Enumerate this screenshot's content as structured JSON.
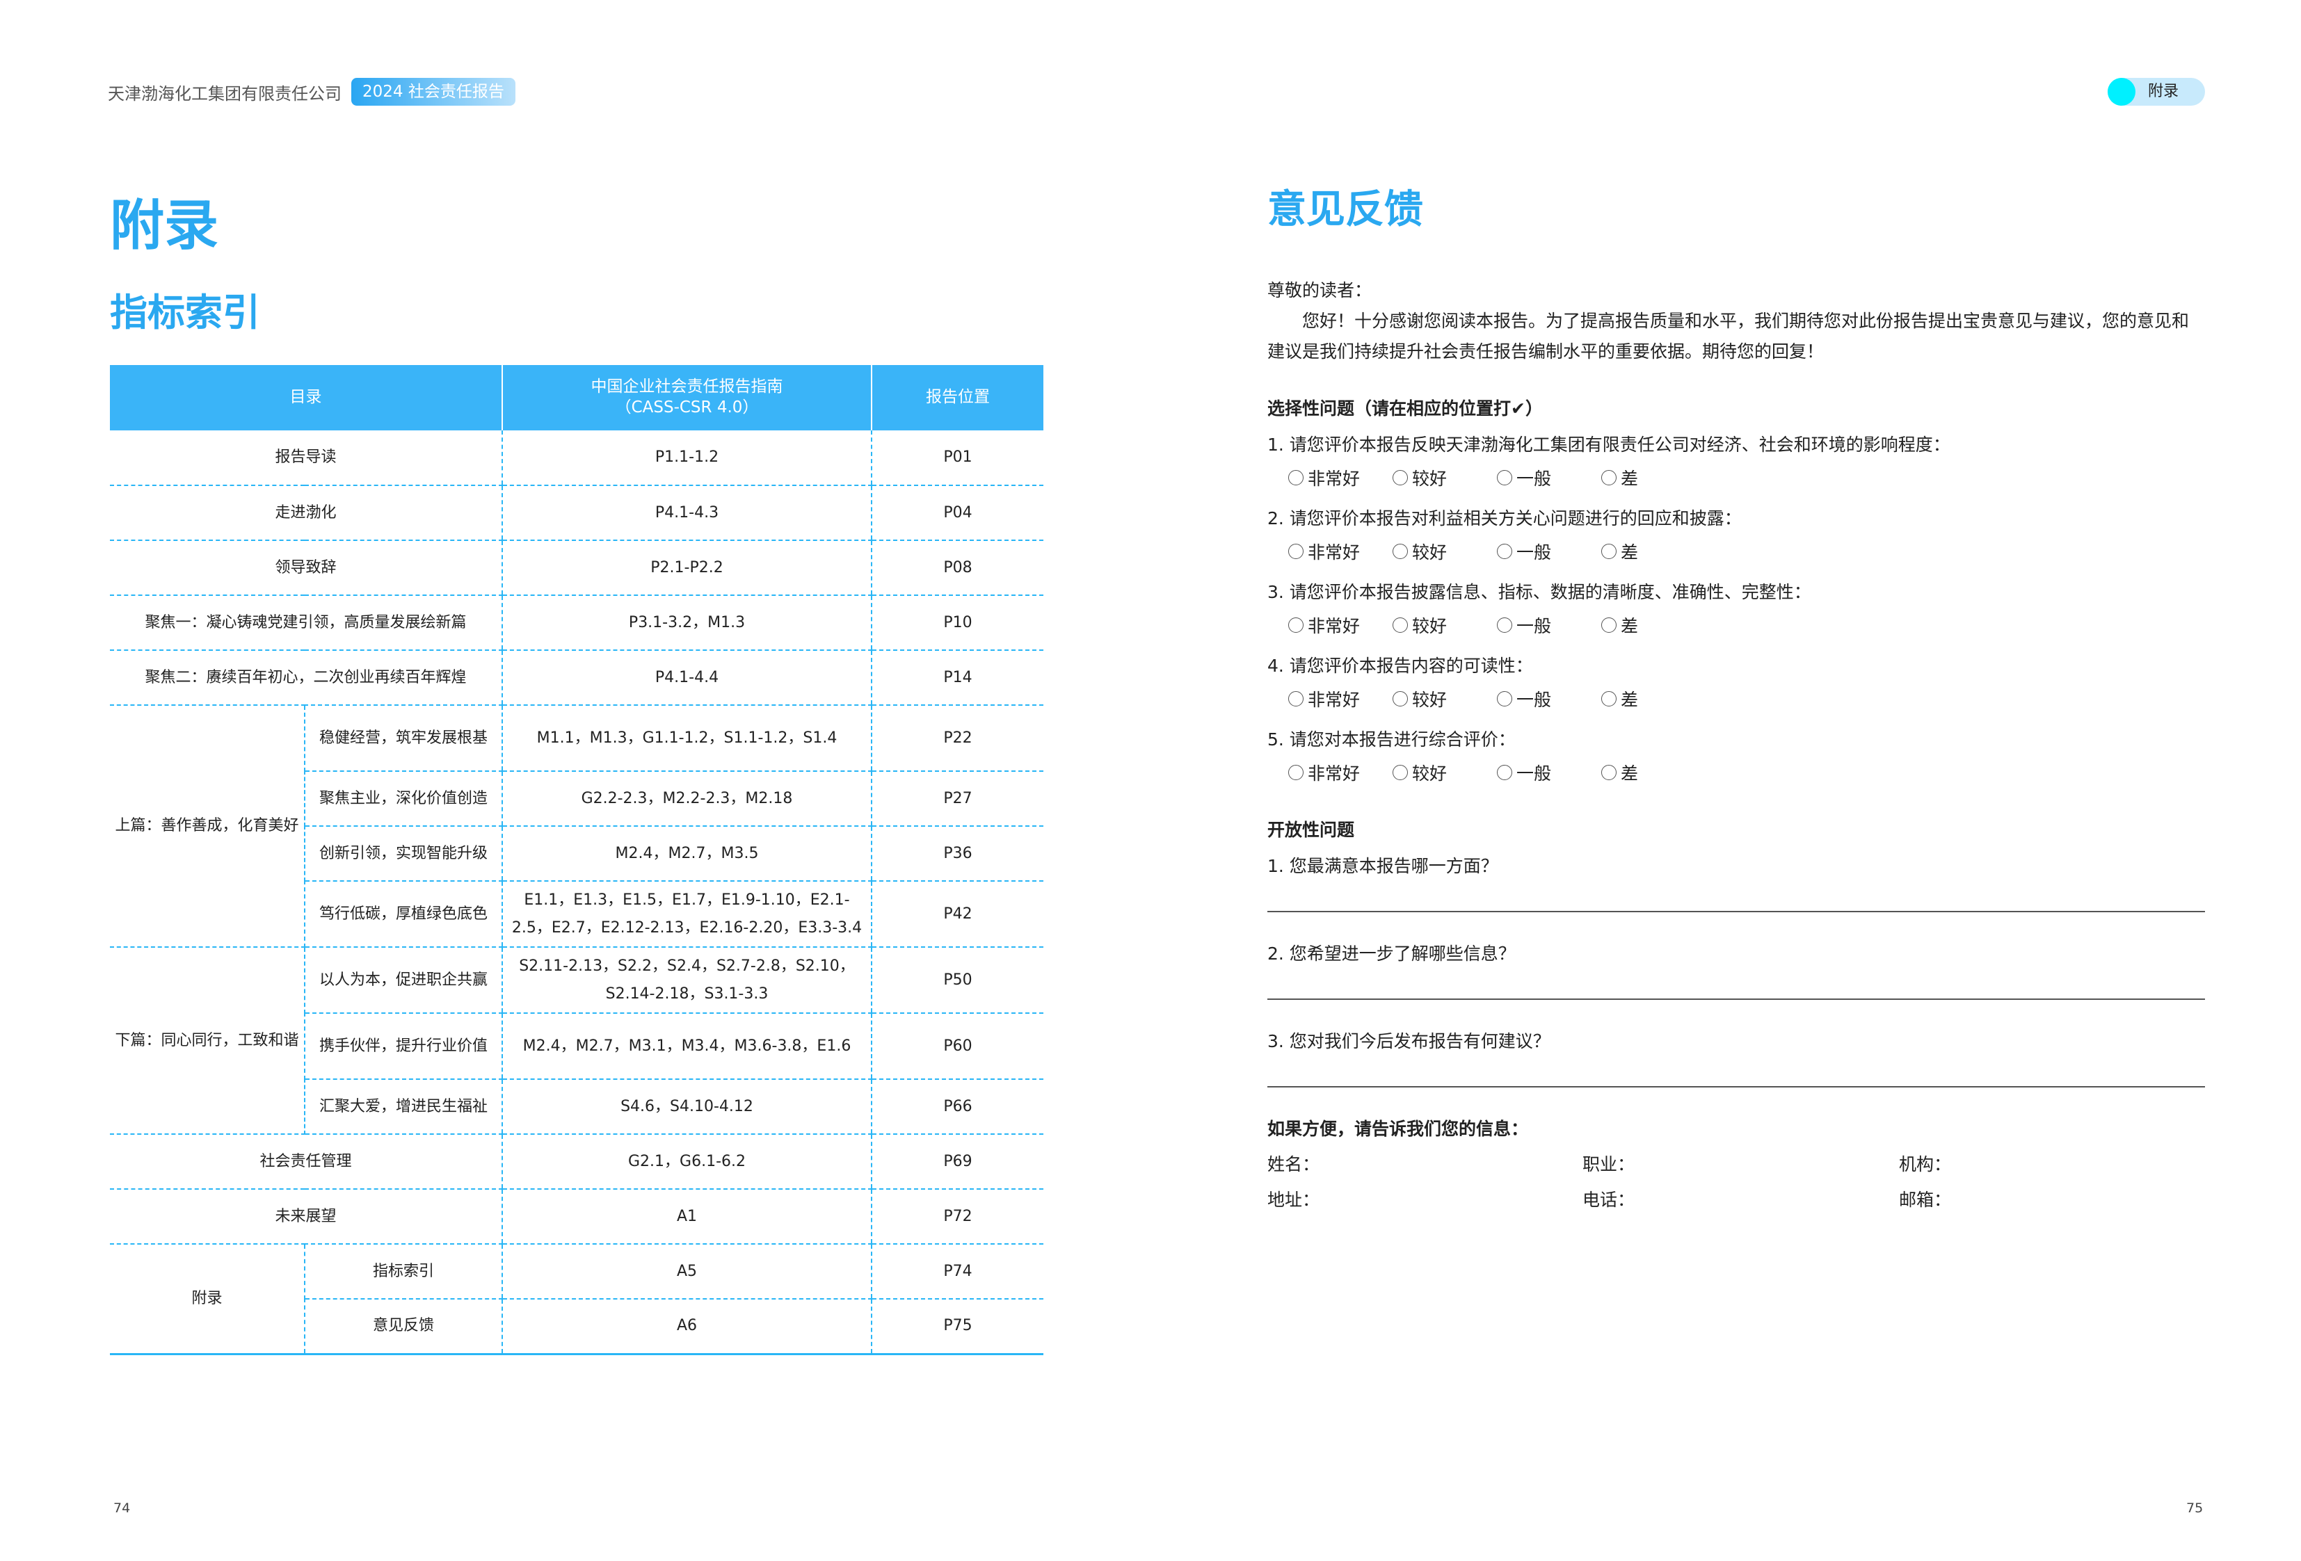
{
  "header": {
    "company": "天津渤海化工集团有限责任公司",
    "badge": "2024 社会责任报告",
    "section_pill": "附录"
  },
  "left": {
    "title": "附录",
    "subtitle": "指标索引",
    "table": {
      "headers": [
        "目录",
        "中国企业社会责任报告指南\n（CASS-CSR 4.0）",
        "报告位置"
      ],
      "rows": [
        {
          "label": "报告导读",
          "std": "P1.1-1.2",
          "page": "P01"
        },
        {
          "label": "走进渤化",
          "std": "P4.1-4.3",
          "page": "P04"
        },
        {
          "label": "领导致辞",
          "std": "P2.1-P2.2",
          "page": "P08"
        },
        {
          "label": "聚焦一：凝心铸魂党建引领，高质量发展绘新篇",
          "std": "P3.1-3.2，M1.3",
          "page": "P10"
        },
        {
          "label": "聚焦二：赓续百年初心，二次创业再续百年辉煌",
          "std": "P4.1-4.4",
          "page": "P14"
        },
        {
          "group": "上篇：善作善成，化育美好",
          "items": [
            {
              "label": "稳健经营，筑牢发展根基",
              "std": "M1.1，M1.3，G1.1-1.2，S1.1-1.2，S1.4",
              "page": "P22"
            },
            {
              "label": "聚焦主业，深化价值创造",
              "std": "G2.2-2.3，M2.2-2.3，M2.18",
              "page": "P27"
            },
            {
              "label": "创新引领，实现智能升级",
              "std": "M2.4，M2.7，M3.5",
              "page": "P36"
            },
            {
              "label": "笃行低碳，厚植绿色底色",
              "std": "E1.1，E1.3，E1.5，E1.7，E1.9-1.10，E2.1-2.5，E2.7，E2.12-2.13，E2.16-2.20，E3.3-3.4",
              "page": "P42"
            }
          ]
        },
        {
          "group": "下篇：同心同行，工致和谐",
          "items": [
            {
              "label": "以人为本，促进职企共赢",
              "std": "S2.11-2.13，S2.2，S2.4，S2.7-2.8，S2.10，S2.14-2.18，S3.1-3.3",
              "page": "P50"
            },
            {
              "label": "携手伙伴，提升行业价值",
              "std": "M2.4，M2.7，M3.1，M3.4，M3.6-3.8，E1.6",
              "page": "P60"
            },
            {
              "label": "汇聚大爱，增进民生福祉",
              "std": "S4.6，S4.10-4.12",
              "page": "P66"
            }
          ]
        },
        {
          "label": "社会责任管理",
          "std": "G2.1，G6.1-6.2",
          "page": "P69"
        },
        {
          "label": "未来展望",
          "std": "A1",
          "page": "P72"
        },
        {
          "group": "附录",
          "items": [
            {
              "label": "指标索引",
              "std": "A5",
              "page": "P74"
            },
            {
              "label": "意见反馈",
              "std": "A6",
              "page": "P75"
            }
          ]
        }
      ]
    },
    "page_number": "74"
  },
  "right": {
    "title": "意见反馈",
    "greeting": "尊敬的读者：",
    "body": "您好！十分感谢您阅读本报告。为了提高报告质量和水平，我们期待您对此份报告提出宝贵意见与建议，您的意见和建议是我们持续提升社会责任报告编制水平的重要依据。期待您的回复！",
    "choice_heading": "选择性问题（请在相应的位置打✔）",
    "options": [
      "非常好",
      "较好",
      "一般",
      "差"
    ],
    "choice_questions": [
      "1. 请您评价本报告反映天津渤海化工集团有限责任公司对经济、社会和环境的影响程度：",
      "2. 请您评价本报告对利益相关方关心问题进行的回应和披露：",
      "3. 请您评价本报告披露信息、指标、数据的清晰度、准确性、完整性：",
      "4. 请您评价本报告内容的可读性：",
      "5. 请您对本报告进行综合评价："
    ],
    "open_heading": "开放性问题",
    "open_questions": [
      "1. 您最满意本报告哪一方面？",
      "2. 您希望进一步了解哪些信息？",
      "3. 您对我们今后发布报告有何建议？"
    ],
    "info_heading": "如果方便，请告诉我们您的信息：",
    "info_fields": [
      "姓名：",
      "职业：",
      "机构：",
      "地址：",
      "电话：",
      "邮箱："
    ],
    "page_number": "75"
  }
}
